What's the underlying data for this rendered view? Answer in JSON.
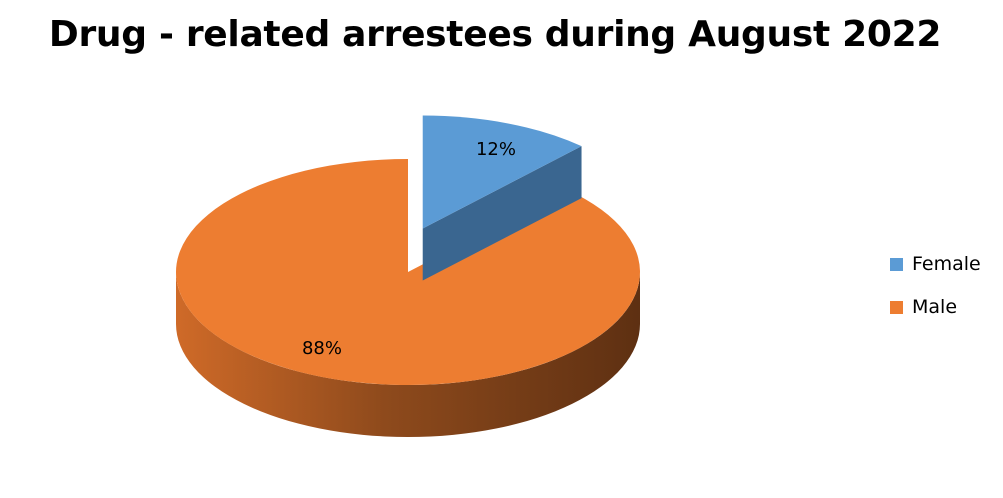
{
  "chart_data": {
    "type": "pie",
    "title": "Drug - related arrestees during August 2022",
    "categories": [
      "Female",
      "Male"
    ],
    "values": [
      12,
      88
    ],
    "labels": [
      "12%",
      "88%"
    ],
    "colors": [
      "#5B9BD5",
      "#ED7D31"
    ],
    "exploded": "Female",
    "three_d": true,
    "legend_position": "right"
  }
}
